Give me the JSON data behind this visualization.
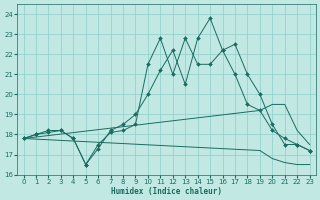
{
  "xlabel": "Humidex (Indice chaleur)",
  "xlim": [
    -0.5,
    23.5
  ],
  "ylim": [
    16,
    24.5
  ],
  "yticks": [
    16,
    17,
    18,
    19,
    20,
    21,
    22,
    23,
    24
  ],
  "xticks": [
    0,
    1,
    2,
    3,
    4,
    5,
    6,
    7,
    8,
    9,
    10,
    11,
    12,
    13,
    14,
    15,
    16,
    17,
    18,
    19,
    20,
    21,
    22,
    23
  ],
  "bg_color": "#c2e8e4",
  "grid_color": "#8ecec8",
  "line_color": "#1a6b60",
  "line1_x": [
    0,
    1,
    2,
    3,
    4,
    5,
    6,
    7,
    8,
    9,
    10,
    11,
    12,
    13,
    14,
    15,
    16,
    17,
    18,
    19,
    20,
    21,
    22,
    23
  ],
  "line1_y": [
    17.8,
    18.0,
    18.2,
    18.2,
    17.8,
    16.5,
    17.3,
    18.2,
    18.5,
    19.0,
    20.0,
    21.2,
    22.2,
    20.5,
    22.8,
    23.8,
    22.2,
    22.5,
    21.0,
    20.0,
    18.5,
    17.5,
    17.5,
    17.2
  ],
  "line2_x": [
    0,
    1,
    2,
    3,
    4,
    5,
    6,
    7,
    8,
    9,
    10,
    11,
    12,
    13,
    14,
    15,
    16,
    17,
    18,
    19,
    20,
    21,
    22,
    23
  ],
  "line2_y": [
    17.8,
    18.0,
    18.1,
    18.2,
    17.8,
    16.5,
    17.5,
    18.1,
    18.2,
    18.5,
    21.5,
    22.8,
    21.0,
    22.8,
    21.5,
    21.5,
    22.2,
    21.0,
    19.5,
    19.2,
    18.2,
    17.8,
    17.5,
    17.2
  ],
  "line3_x": [
    0,
    19,
    20,
    21,
    22,
    23
  ],
  "line3_y": [
    17.8,
    19.2,
    19.5,
    19.5,
    18.2,
    17.5
  ],
  "line4_x": [
    0,
    19,
    20,
    21,
    22,
    23
  ],
  "line4_y": [
    17.8,
    17.2,
    16.8,
    16.6,
    16.5,
    16.5
  ]
}
